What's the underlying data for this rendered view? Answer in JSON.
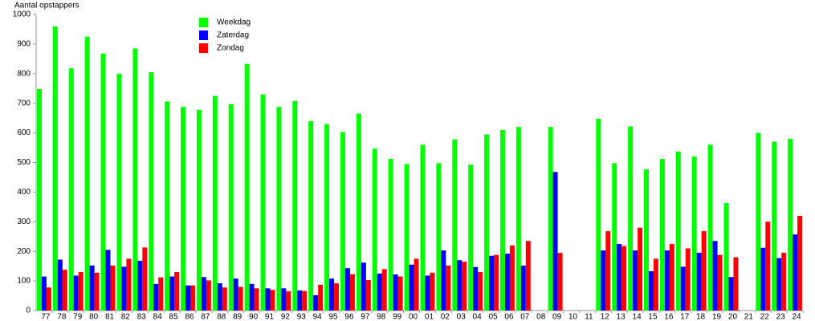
{
  "chart_data": {
    "type": "bar",
    "y_label": "Aantal opstappers",
    "categories": [
      "77",
      "78",
      "79",
      "80",
      "81",
      "82",
      "83",
      "84",
      "85",
      "86",
      "87",
      "88",
      "89",
      "90",
      "91",
      "92",
      "93",
      "94",
      "95",
      "96",
      "97",
      "98",
      "99",
      "00",
      "01",
      "02",
      "03",
      "04",
      "05",
      "06",
      "07",
      "08",
      "09",
      "10",
      "11",
      "12",
      "13",
      "14",
      "15",
      "16",
      "17",
      "18",
      "19",
      "20",
      "21",
      "22",
      "23",
      "24"
    ],
    "series": [
      {
        "name": "Weekdag",
        "color": "#00ff00",
        "values": [
          748,
          960,
          818,
          925,
          868,
          800,
          885,
          805,
          706,
          688,
          678,
          725,
          697,
          833,
          730,
          688,
          708,
          640,
          630,
          603,
          665,
          547,
          512,
          495,
          560,
          498,
          578,
          493,
          595,
          610,
          620,
          null,
          620,
          null,
          null,
          648,
          498,
          622,
          477,
          512,
          537,
          520,
          560,
          363,
          null,
          600,
          570,
          580
        ]
      },
      {
        "name": "Zaterdag",
        "color": "#0000ff",
        "values": [
          115,
          172,
          118,
          152,
          205,
          148,
          168,
          90,
          115,
          85,
          113,
          92,
          108,
          90,
          75,
          75,
          68,
          52,
          108,
          143,
          162,
          125,
          122,
          155,
          118,
          203,
          170,
          147,
          185,
          192,
          152,
          null,
          468,
          null,
          null,
          203,
          225,
          203,
          133,
          203,
          148,
          195,
          235,
          113,
          null,
          212,
          177,
          257
        ]
      },
      {
        "name": "Zondag",
        "color": "#ff0000",
        "values": [
          78,
          138,
          130,
          128,
          152,
          175,
          213,
          112,
          130,
          85,
          102,
          78,
          80,
          75,
          70,
          65,
          66,
          87,
          92,
          123,
          103,
          140,
          115,
          175,
          128,
          152,
          165,
          130,
          188,
          220,
          235,
          null,
          195,
          null,
          null,
          268,
          218,
          280,
          175,
          225,
          210,
          268,
          188,
          180,
          null,
          300,
          195,
          320
        ]
      }
    ],
    "ylim": [
      0,
      1000
    ],
    "yticks": [
      0,
      100,
      200,
      300,
      400,
      500,
      600,
      700,
      800,
      900,
      1000
    ]
  }
}
